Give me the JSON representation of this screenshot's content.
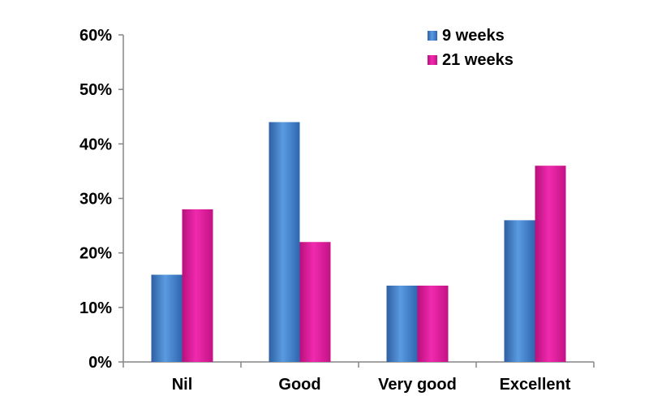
{
  "chart_data": {
    "type": "bar",
    "categories": [
      "Nil",
      "Good",
      "Very good",
      "Excellent"
    ],
    "series": [
      {
        "name": "9 weeks",
        "values": [
          16,
          44,
          14,
          26
        ],
        "color": "#3f7cc8"
      },
      {
        "name": "21 weeks",
        "values": [
          28,
          22,
          14,
          36
        ],
        "color": "#e0189a"
      }
    ],
    "yticks": [
      "0%",
      "10%",
      "20%",
      "30%",
      "40%",
      "50%",
      "60%"
    ],
    "ylim": [
      0,
      60
    ],
    "grid": false,
    "legend": "top-right",
    "title": "",
    "xlabel": "",
    "ylabel": ""
  }
}
